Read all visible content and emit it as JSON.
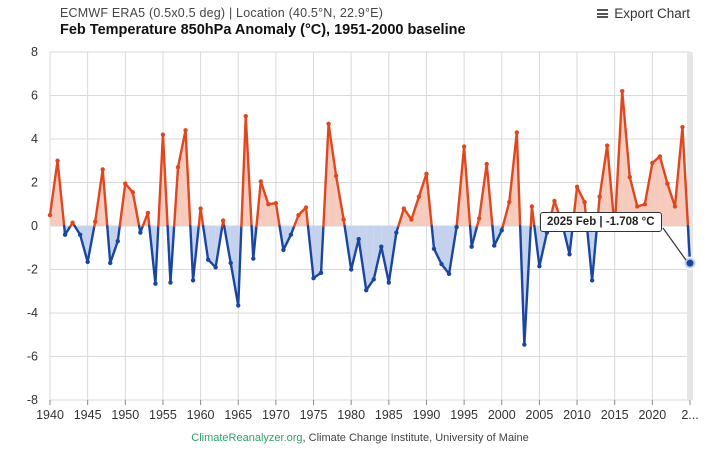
{
  "header": {
    "subtitle": "ECMWF ERA5 (0.5x0.5 deg) | Location (40.5°N, 22.9°E)",
    "title": "Feb Temperature 850hPa Anomaly (°C), 1951-2000 baseline",
    "export_label": "Export Chart"
  },
  "footer": {
    "brand": "ClimateReanalyzer.org",
    "rest": ", Climate Change Institute, University of Maine"
  },
  "tooltip": {
    "text": "2025 Feb | -1.708 °C"
  },
  "colors": {
    "positive": "#e0471f",
    "negative": "#1a46a0",
    "positive_fill": "#f6cabd",
    "negative_fill": "#c4d2ee"
  },
  "chart_data": {
    "type": "area",
    "xlabel": "",
    "ylabel": "",
    "xlim": [
      1940,
      2025
    ],
    "ylim": [
      -8,
      8
    ],
    "y_ticks": [
      -8,
      -6,
      -4,
      -2,
      0,
      2,
      4,
      6,
      8
    ],
    "x_ticks": [
      "1940",
      "1945",
      "1950",
      "1955",
      "1960",
      "1965",
      "1970",
      "1975",
      "1980",
      "1985",
      "1990",
      "1995",
      "2000",
      "2005",
      "2010",
      "2015",
      "2020",
      "2..."
    ],
    "grid": true,
    "x": [
      1940,
      1941,
      1942,
      1943,
      1944,
      1945,
      1946,
      1947,
      1948,
      1949,
      1950,
      1951,
      1952,
      1953,
      1954,
      1955,
      1956,
      1957,
      1958,
      1959,
      1960,
      1961,
      1962,
      1963,
      1964,
      1965,
      1966,
      1967,
      1968,
      1969,
      1970,
      1971,
      1972,
      1973,
      1974,
      1975,
      1976,
      1977,
      1978,
      1979,
      1980,
      1981,
      1982,
      1983,
      1984,
      1985,
      1986,
      1987,
      1988,
      1989,
      1990,
      1991,
      1992,
      1993,
      1994,
      1995,
      1996,
      1997,
      1998,
      1999,
      2000,
      2001,
      2002,
      2003,
      2004,
      2005,
      2006,
      2007,
      2008,
      2009,
      2010,
      2011,
      2012,
      2013,
      2014,
      2015,
      2016,
      2017,
      2018,
      2019,
      2020,
      2021,
      2022,
      2023,
      2024,
      2025
    ],
    "values": [
      0.5,
      3.0,
      -0.4,
      0.15,
      -0.4,
      -1.65,
      0.2,
      2.6,
      -1.7,
      -0.7,
      1.95,
      1.55,
      -0.3,
      0.6,
      -2.65,
      4.2,
      -2.6,
      2.7,
      4.4,
      -2.5,
      0.8,
      -1.55,
      -1.9,
      0.25,
      -1.7,
      -3.65,
      5.05,
      -1.5,
      2.05,
      1.0,
      1.05,
      -1.1,
      -0.4,
      0.5,
      0.85,
      -2.4,
      -2.15,
      4.7,
      2.3,
      0.3,
      -2.0,
      -0.6,
      -2.95,
      -2.45,
      -0.95,
      -2.6,
      -0.3,
      0.8,
      0.3,
      1.35,
      2.4,
      -1.05,
      -1.75,
      -2.2,
      -0.05,
      3.65,
      -0.95,
      0.35,
      2.85,
      -0.9,
      -0.2,
      1.1,
      4.3,
      -5.45,
      0.9,
      -1.85,
      -0.3,
      1.15,
      0.15,
      -1.3,
      1.8,
      1.1,
      -2.5,
      1.35,
      3.7,
      -0.1,
      6.2,
      2.25,
      0.9,
      1.0,
      2.9,
      3.2,
      1.95,
      0.9,
      4.55,
      -1.708
    ]
  }
}
